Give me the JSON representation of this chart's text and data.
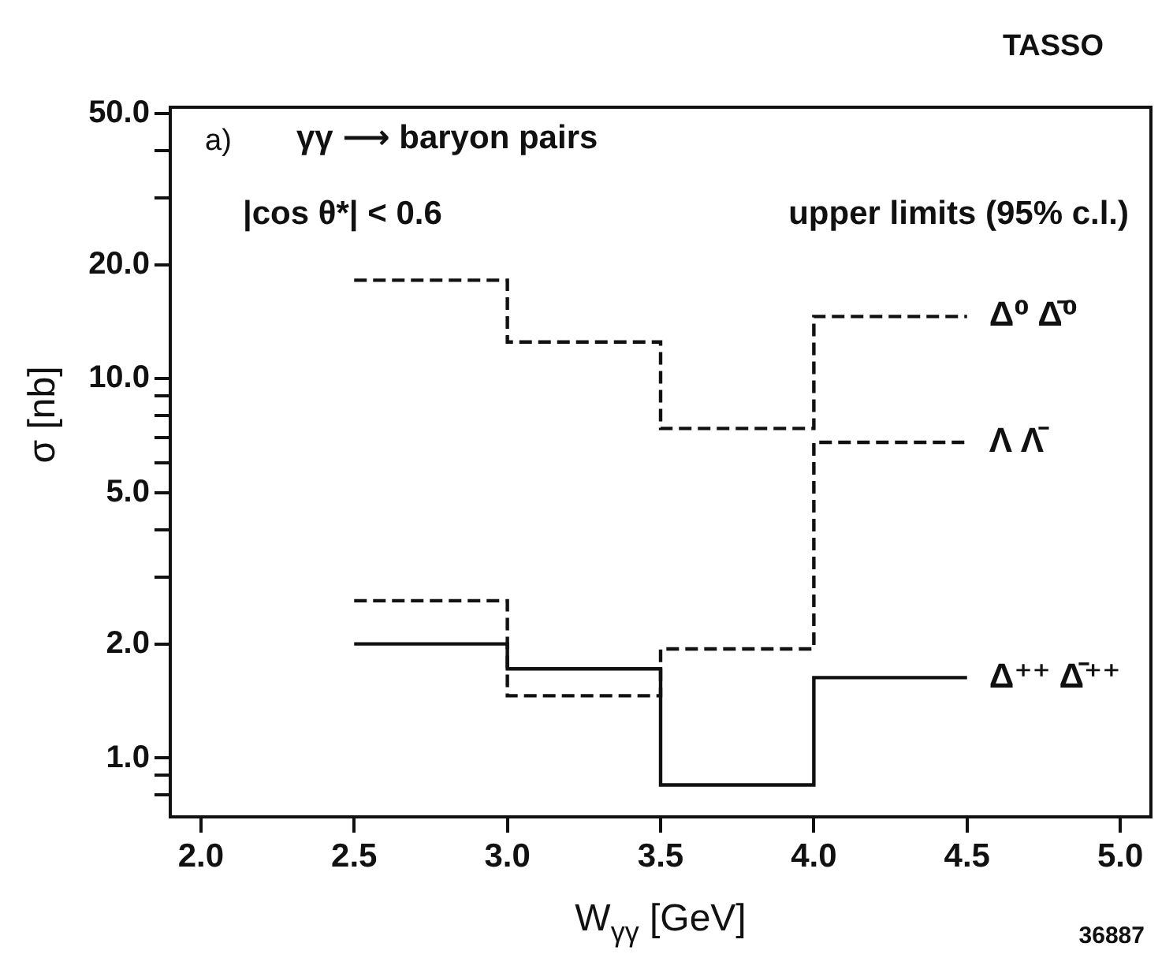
{
  "chart_data": {
    "type": "step",
    "xlabel": "W$_{γγ}$ [GeV]",
    "ylabel": "σ [nb]",
    "annotations": [
      "TASSO",
      "a)",
      "γγ ⟶ baryon pairs",
      "|cos θ*| < 0.6",
      "upper limits (95% c.l.)",
      "36887"
    ],
    "log": "y",
    "grid": false,
    "legend": false,
    "marker": "none",
    "xlim": [
      1.9,
      5.1
    ],
    "xticks": [
      {
        "value": 2.0,
        "label": "2.0"
      },
      {
        "value": 2.5,
        "label": "2.5"
      },
      {
        "value": 3.0,
        "label": "3.0"
      },
      {
        "value": 3.5,
        "label": "3.5"
      },
      {
        "value": 4.0,
        "label": "4.0"
      },
      {
        "value": 4.5,
        "label": "4.5"
      },
      {
        "value": 5.0,
        "label": "5.0"
      }
    ],
    "ylim": [
      0.7,
      52
    ],
    "yticks": [
      {
        "value": 0.8,
        "label": null
      },
      {
        "value": 0.9,
        "label": null
      },
      {
        "value": 1,
        "label": "1.0"
      },
      {
        "value": 2,
        "label": "2.0"
      },
      {
        "value": 3,
        "label": null
      },
      {
        "value": 4,
        "label": null
      },
      {
        "value": 5,
        "label": "5.0"
      },
      {
        "value": 6,
        "label": null
      },
      {
        "value": 7,
        "label": null
      },
      {
        "value": 8,
        "label": null
      },
      {
        "value": 9,
        "label": null
      },
      {
        "value": 10,
        "label": "10.0"
      },
      {
        "value": 20,
        "label": "20.0"
      },
      {
        "value": 30,
        "label": null
      },
      {
        "value": 40,
        "label": null
      },
      {
        "value": 50,
        "label": "50.0"
      }
    ],
    "x": [
      2.5,
      3.0,
      3.5,
      4.0,
      4.5
    ],
    "series": [
      {
        "name": "Δ⁰ Δ̄⁰",
        "color": "#111111",
        "line_style": "dashed",
        "values": [
          18.2,
          12.5,
          7.4,
          14.6,
          14.6
        ]
      },
      {
        "name": "Λ Λ̄",
        "color": "#111111",
        "line_style": "dashed",
        "values": [
          2.6,
          1.46,
          1.94,
          6.8,
          6.8
        ]
      },
      {
        "name": "Δ⁺⁺ Δ̄⁺⁺",
        "color": "#111111",
        "line_style": "solid",
        "values": [
          2.0,
          1.72,
          0.85,
          1.63,
          1.63
        ]
      }
    ]
  }
}
